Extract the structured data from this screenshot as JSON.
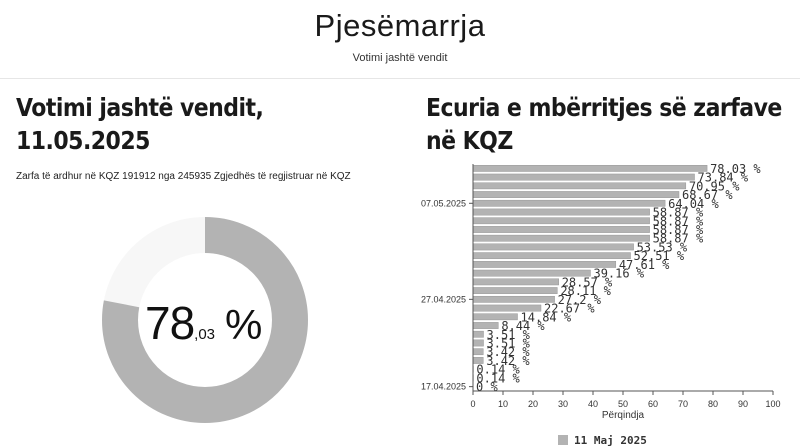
{
  "header": {
    "title": "Pjesëmarrja",
    "subtitle": "Votimi jashtë vendit"
  },
  "left_panel": {
    "title_line1": "Votimi jashtë vendit,",
    "title_line2": "11.05.2025",
    "summary": "Zarfa të ardhur në KQZ 191912 nga 245935 Zgjedhës të regjistruar në KQZ",
    "turnout": {
      "value": 78.03,
      "integer": "78",
      "decimal": ",03",
      "sign": "%"
    }
  },
  "right_panel": {
    "title_line1": "Ecuria e mbërritjes së zarfave",
    "title_line2": "në KQZ"
  },
  "colors": {
    "bar": "#b3b3b3",
    "donut_fill": "#b3b3b3",
    "donut_track": "#f7f7f7"
  },
  "chart_data": {
    "type": "bar",
    "orientation": "horizontal",
    "xlabel": "Përqindja",
    "xlim": [
      0,
      100
    ],
    "xticks": [
      0,
      10,
      20,
      30,
      40,
      50,
      60,
      70,
      80,
      90,
      100
    ],
    "ytick_labels": [
      "07.05.2025",
      "27.04.2025",
      "17.04.2025"
    ],
    "series": [
      {
        "name": "11 Maj 2025",
        "values": [
          78.03,
          73.84,
          70.95,
          68.67,
          64.04,
          58.87,
          58.87,
          58.87,
          58.87,
          53.53,
          52.51,
          47.61,
          39.16,
          28.57,
          28.11,
          27.2,
          22.67,
          14.84,
          8.44,
          3.51,
          3.51,
          3.42,
          3.42,
          0.14,
          0.14,
          0
        ],
        "labels": [
          "78.03 %",
          "73.84 %",
          "70.95 %",
          "68.67 %",
          "64.04 %",
          "58.87 %",
          "58.87 %",
          "58.87 %",
          "58.87 %",
          "53.53 %",
          "52.51 %",
          "47.61 %",
          "39.16 %",
          "28.57 %",
          "28.11 %",
          "27.2 %",
          "22.67 %",
          "14.84 %",
          "8.44 %",
          "3.51 %",
          "3.51 %",
          "3.42 %",
          "3.42 %",
          "0.14 %",
          "0.14 %",
          "0 %"
        ]
      }
    ],
    "legend_position": "bottom"
  }
}
